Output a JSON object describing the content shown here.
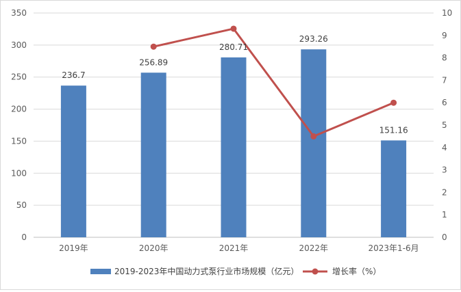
{
  "chart_data": {
    "type": "bar",
    "categories": [
      "2019年",
      "2020年",
      "2021年",
      "2022年",
      "2023年1-6月"
    ],
    "series": [
      {
        "name": "2019-2023年中国动力式泵行业市场规模（亿元）",
        "chart_type": "bar",
        "axis": "left",
        "values": [
          236.7,
          256.89,
          280.71,
          293.26,
          151.16
        ],
        "data_labels": [
          "236.7",
          "256.89",
          "280.71",
          "293.26",
          "151.16"
        ],
        "color": "#4f81bd"
      },
      {
        "name": "增长率（%）",
        "chart_type": "line",
        "axis": "right",
        "values": [
          null,
          8.5,
          9.3,
          4.5,
          6.0
        ],
        "color": "#c0504d"
      }
    ],
    "left_axis": {
      "ylim": [
        0,
        350
      ],
      "ticks": [
        "0",
        "50",
        "100",
        "150",
        "200",
        "250",
        "300",
        "350"
      ],
      "tick_values": [
        0,
        50,
        100,
        150,
        200,
        250,
        300,
        350
      ]
    },
    "right_axis": {
      "ylim": [
        0,
        10
      ],
      "ticks": [
        "0",
        "1",
        "2",
        "3",
        "4",
        "5",
        "6",
        "7",
        "8",
        "9",
        "10"
      ],
      "tick_values": [
        0,
        1,
        2,
        3,
        4,
        5,
        6,
        7,
        8,
        9,
        10
      ]
    },
    "grid": true,
    "legend_position": "bottom"
  }
}
